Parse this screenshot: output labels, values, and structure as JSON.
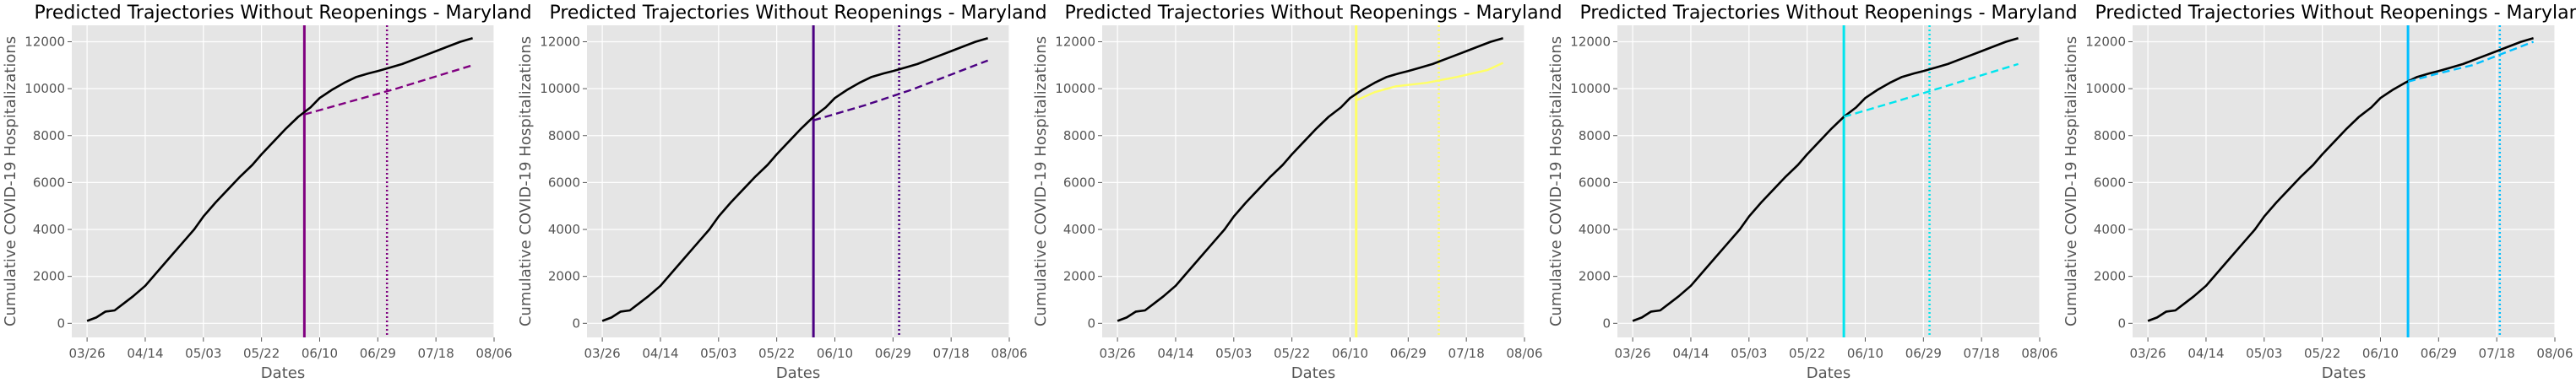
{
  "chart_data": [
    {
      "type": "line",
      "title": "Predicted Trajectories Without Reopenings - Maryland",
      "xlabel": "Dates",
      "ylabel": "Cumulative COVID-19 Hospitalizations",
      "xticks": [
        "03/26",
        "04/14",
        "05/03",
        "05/22",
        "06/10",
        "06/29",
        "07/18",
        "08/06"
      ],
      "yticks": [
        0,
        2000,
        4000,
        6000,
        8000,
        10000,
        12000
      ],
      "xlim": [
        "2020-03-21",
        "2020-08-06"
      ],
      "ylim": [
        -600,
        12700
      ],
      "grid": true,
      "reopen_date": "2020-06-05",
      "dotted_date": "2020-07-02",
      "accent_color": "#800080",
      "series": [
        {
          "color": "#000000",
          "style": "solid",
          "x": [
            "2020-03-26",
            "2020-03-29",
            "2020-04-01",
            "2020-04-04",
            "2020-04-07",
            "2020-04-10",
            "2020-04-14",
            "2020-04-18",
            "2020-04-22",
            "2020-04-26",
            "2020-04-30",
            "2020-05-03",
            "2020-05-07",
            "2020-05-11",
            "2020-05-15",
            "2020-05-19",
            "2020-05-22",
            "2020-05-26",
            "2020-05-30",
            "2020-06-03",
            "2020-06-07",
            "2020-06-10",
            "2020-06-14",
            "2020-06-18",
            "2020-06-22",
            "2020-06-26",
            "2020-06-29",
            "2020-07-03",
            "2020-07-07",
            "2020-07-11",
            "2020-07-15",
            "2020-07-18",
            "2020-07-22",
            "2020-07-26",
            "2020-07-30"
          ],
          "values": [
            100,
            250,
            500,
            550,
            850,
            1150,
            1600,
            2200,
            2800,
            3400,
            4000,
            4550,
            5150,
            5700,
            6250,
            6750,
            7200,
            7750,
            8300,
            8800,
            9200,
            9600,
            9950,
            10250,
            10500,
            10650,
            10750,
            10900,
            11050,
            11250,
            11450,
            11600,
            11800,
            12000,
            12150
          ]
        },
        {
          "color": "#800080",
          "style": "dashed",
          "x": [
            "2020-06-05",
            "2020-06-20",
            "2020-07-05",
            "2020-07-20",
            "2020-07-30"
          ],
          "values": [
            8900,
            9450,
            10000,
            10600,
            11000
          ]
        }
      ]
    },
    {
      "type": "line",
      "title": "Predicted Trajectories Without Reopenings - Maryland",
      "xlabel": "Dates",
      "ylabel": "Cumulative COVID-19 Hospitalizations",
      "xticks": [
        "03/26",
        "04/14",
        "05/03",
        "05/22",
        "06/10",
        "06/29",
        "07/18",
        "08/06"
      ],
      "yticks": [
        0,
        2000,
        4000,
        6000,
        8000,
        10000,
        12000
      ],
      "xlim": [
        "2020-03-21",
        "2020-08-06"
      ],
      "ylim": [
        -600,
        12700
      ],
      "grid": true,
      "reopen_date": "2020-06-03",
      "dotted_date": "2020-07-01",
      "accent_color": "#4b0082",
      "series": [
        {
          "color": "#000000",
          "style": "solid",
          "x": [
            "2020-03-26",
            "2020-03-29",
            "2020-04-01",
            "2020-04-04",
            "2020-04-07",
            "2020-04-10",
            "2020-04-14",
            "2020-04-18",
            "2020-04-22",
            "2020-04-26",
            "2020-04-30",
            "2020-05-03",
            "2020-05-07",
            "2020-05-11",
            "2020-05-15",
            "2020-05-19",
            "2020-05-22",
            "2020-05-26",
            "2020-05-30",
            "2020-06-03",
            "2020-06-07",
            "2020-06-10",
            "2020-06-14",
            "2020-06-18",
            "2020-06-22",
            "2020-06-26",
            "2020-06-29",
            "2020-07-03",
            "2020-07-07",
            "2020-07-11",
            "2020-07-15",
            "2020-07-18",
            "2020-07-22",
            "2020-07-26",
            "2020-07-30"
          ],
          "values": [
            100,
            250,
            500,
            550,
            850,
            1150,
            1600,
            2200,
            2800,
            3400,
            4000,
            4550,
            5150,
            5700,
            6250,
            6750,
            7200,
            7750,
            8300,
            8800,
            9200,
            9600,
            9950,
            10250,
            10500,
            10650,
            10750,
            10900,
            11050,
            11250,
            11450,
            11600,
            11800,
            12000,
            12150
          ]
        },
        {
          "color": "#4b0082",
          "style": "dashed",
          "x": [
            "2020-06-03",
            "2020-06-20",
            "2020-07-05",
            "2020-07-20",
            "2020-07-30"
          ],
          "values": [
            8650,
            9300,
            9950,
            10700,
            11200
          ]
        }
      ]
    },
    {
      "type": "line",
      "title": "Predicted Trajectories Without Reopenings - Maryland",
      "xlabel": "Dates",
      "ylabel": "Cumulative COVID-19 Hospitalizations",
      "xticks": [
        "03/26",
        "04/14",
        "05/03",
        "05/22",
        "06/10",
        "06/29",
        "07/18",
        "08/06"
      ],
      "yticks": [
        0,
        2000,
        4000,
        6000,
        8000,
        10000,
        12000
      ],
      "xlim": [
        "2020-03-21",
        "2020-08-06"
      ],
      "ylim": [
        -600,
        12700
      ],
      "grid": true,
      "reopen_date": "2020-06-12",
      "dotted_date": "2020-07-09",
      "accent_color": "#ffff66",
      "series": [
        {
          "color": "#000000",
          "style": "solid",
          "x": [
            "2020-03-26",
            "2020-03-29",
            "2020-04-01",
            "2020-04-04",
            "2020-04-07",
            "2020-04-10",
            "2020-04-14",
            "2020-04-18",
            "2020-04-22",
            "2020-04-26",
            "2020-04-30",
            "2020-05-03",
            "2020-05-07",
            "2020-05-11",
            "2020-05-15",
            "2020-05-19",
            "2020-05-22",
            "2020-05-26",
            "2020-05-30",
            "2020-06-03",
            "2020-06-07",
            "2020-06-10",
            "2020-06-14",
            "2020-06-18",
            "2020-06-22",
            "2020-06-26",
            "2020-06-29",
            "2020-07-03",
            "2020-07-07",
            "2020-07-11",
            "2020-07-15",
            "2020-07-18",
            "2020-07-22",
            "2020-07-26",
            "2020-07-30"
          ],
          "values": [
            100,
            250,
            500,
            550,
            850,
            1150,
            1600,
            2200,
            2800,
            3400,
            4000,
            4550,
            5150,
            5700,
            6250,
            6750,
            7200,
            7750,
            8300,
            8800,
            9200,
            9600,
            9950,
            10250,
            10500,
            10650,
            10750,
            10900,
            11050,
            11250,
            11450,
            11600,
            11800,
            12000,
            12150
          ]
        },
        {
          "color": "#ffff66",
          "style": "solid",
          "x": [
            "2020-06-12",
            "2020-06-18",
            "2020-06-25",
            "2020-07-05",
            "2020-07-15",
            "2020-07-25",
            "2020-07-30"
          ],
          "values": [
            9500,
            9850,
            10100,
            10250,
            10500,
            10800,
            11100
          ]
        }
      ]
    },
    {
      "type": "line",
      "title": "Predicted Trajectories Without Reopenings - Maryland",
      "xlabel": "Dates",
      "ylabel": "Cumulative COVID-19 Hospitalizations",
      "xticks": [
        "03/26",
        "04/14",
        "05/03",
        "05/22",
        "06/10",
        "06/29",
        "07/18",
        "08/06"
      ],
      "yticks": [
        0,
        2000,
        4000,
        6000,
        8000,
        10000,
        12000
      ],
      "xlim": [
        "2020-03-21",
        "2020-08-06"
      ],
      "ylim": [
        -600,
        12700
      ],
      "grid": true,
      "reopen_date": "2020-06-03",
      "dotted_date": "2020-07-01",
      "accent_color": "#00e5ee",
      "series": [
        {
          "color": "#000000",
          "style": "solid",
          "x": [
            "2020-03-26",
            "2020-03-29",
            "2020-04-01",
            "2020-04-04",
            "2020-04-07",
            "2020-04-10",
            "2020-04-14",
            "2020-04-18",
            "2020-04-22",
            "2020-04-26",
            "2020-04-30",
            "2020-05-03",
            "2020-05-07",
            "2020-05-11",
            "2020-05-15",
            "2020-05-19",
            "2020-05-22",
            "2020-05-26",
            "2020-05-30",
            "2020-06-03",
            "2020-06-07",
            "2020-06-10",
            "2020-06-14",
            "2020-06-18",
            "2020-06-22",
            "2020-06-26",
            "2020-06-29",
            "2020-07-03",
            "2020-07-07",
            "2020-07-11",
            "2020-07-15",
            "2020-07-18",
            "2020-07-22",
            "2020-07-26",
            "2020-07-30"
          ],
          "values": [
            100,
            250,
            500,
            550,
            850,
            1150,
            1600,
            2200,
            2800,
            3400,
            4000,
            4550,
            5150,
            5700,
            6250,
            6750,
            7200,
            7750,
            8300,
            8800,
            9200,
            9600,
            9950,
            10250,
            10500,
            10650,
            10750,
            10900,
            11050,
            11250,
            11450,
            11600,
            11800,
            12000,
            12150
          ]
        },
        {
          "color": "#00e5ee",
          "style": "dashed",
          "x": [
            "2020-06-03",
            "2020-06-20",
            "2020-07-05",
            "2020-07-20",
            "2020-07-30"
          ],
          "values": [
            8800,
            9450,
            10050,
            10650,
            11050
          ]
        }
      ]
    },
    {
      "type": "line",
      "title": "Predicted Trajectories Without Reopenings - Maryland",
      "xlabel": "Dates",
      "ylabel": "Cumulative COVID-19 Hospitalizations",
      "xticks": [
        "03/26",
        "04/14",
        "05/03",
        "05/22",
        "06/10",
        "06/29",
        "07/18",
        "08/06"
      ],
      "yticks": [
        0,
        2000,
        4000,
        6000,
        8000,
        10000,
        12000
      ],
      "xlim": [
        "2020-03-21",
        "2020-08-06"
      ],
      "ylim": [
        -600,
        12700
      ],
      "grid": true,
      "reopen_date": "2020-06-19",
      "dotted_date": "2020-07-19",
      "accent_color": "#00bfff",
      "series": [
        {
          "color": "#000000",
          "style": "solid",
          "x": [
            "2020-03-26",
            "2020-03-29",
            "2020-04-01",
            "2020-04-04",
            "2020-04-07",
            "2020-04-10",
            "2020-04-14",
            "2020-04-18",
            "2020-04-22",
            "2020-04-26",
            "2020-04-30",
            "2020-05-03",
            "2020-05-07",
            "2020-05-11",
            "2020-05-15",
            "2020-05-19",
            "2020-05-22",
            "2020-05-26",
            "2020-05-30",
            "2020-06-03",
            "2020-06-07",
            "2020-06-10",
            "2020-06-14",
            "2020-06-18",
            "2020-06-22",
            "2020-06-26",
            "2020-06-29",
            "2020-07-03",
            "2020-07-07",
            "2020-07-11",
            "2020-07-15",
            "2020-07-18",
            "2020-07-22",
            "2020-07-26",
            "2020-07-30"
          ],
          "values": [
            100,
            250,
            500,
            550,
            850,
            1150,
            1600,
            2200,
            2800,
            3400,
            4000,
            4550,
            5150,
            5700,
            6250,
            6750,
            7200,
            7750,
            8300,
            8800,
            9200,
            9600,
            9950,
            10250,
            10500,
            10650,
            10750,
            10900,
            11050,
            11250,
            11450,
            11600,
            11800,
            12000,
            12150
          ]
        },
        {
          "color": "#00bfff",
          "style": "dashed",
          "x": [
            "2020-06-19",
            "2020-06-29",
            "2020-07-10",
            "2020-07-20",
            "2020-07-30"
          ],
          "values": [
            10300,
            10650,
            11000,
            11500,
            12000
          ]
        }
      ]
    }
  ]
}
